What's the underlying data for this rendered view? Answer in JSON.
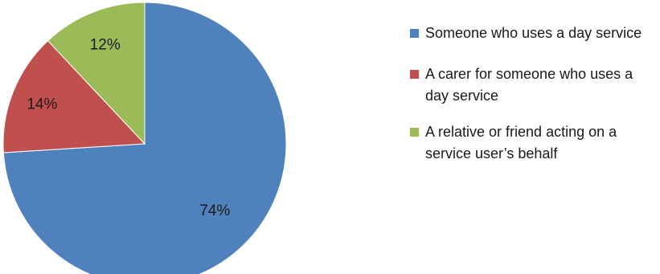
{
  "chart_data": {
    "type": "pie",
    "title": "",
    "slices": [
      {
        "label": "Someone who uses a day service",
        "value": 74,
        "display": "74%",
        "color": "#4F81BD"
      },
      {
        "label": "A carer for someone who uses a day service",
        "value": 14,
        "display": "14%",
        "color": "#C0504D"
      },
      {
        "label": "A relative or friend acting on a service user’s behalf",
        "value": 12,
        "display": "12%",
        "color": "#9BBB59"
      }
    ],
    "legend_position": "right",
    "start_angle": "12 o'clock",
    "direction": "clockwise"
  }
}
